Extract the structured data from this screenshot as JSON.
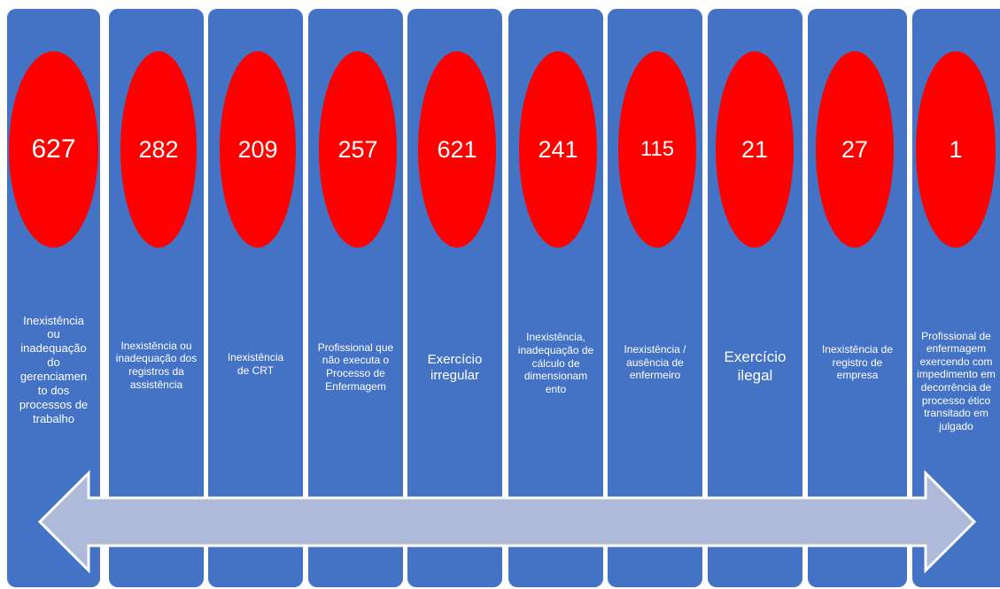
{
  "colors": {
    "column_fill": "#4472c4",
    "ellipse_fill": "#ff0000",
    "arrow_fill": "#afbadb",
    "arrow_stroke": "#ffffff",
    "text": "#ffffff"
  },
  "columns": [
    {
      "number": "627",
      "label": "Inexistência ou inadequação do gerenciamen to dos processos de trabalho"
    },
    {
      "number": "282",
      "label": "Inexistência ou inadequação dos registros da assistência"
    },
    {
      "number": "209",
      "label": "Inexistência de CRT"
    },
    {
      "number": "257",
      "label": "Profissional que não executa o Processo de Enfermagem"
    },
    {
      "number": "621",
      "label": "Exercício irregular"
    },
    {
      "number": "241",
      "label": "Inexistência, inadequação de cálculo de dimensionam ento"
    },
    {
      "number": "115",
      "label": "Inexistência / ausência de enfermeiro"
    },
    {
      "number": "21",
      "label": "Exercício ilegal"
    },
    {
      "number": "27",
      "label": "Inexistência de registro de empresa"
    },
    {
      "number": "1",
      "label": "Profissional de enfermagem exercendo com impedimento em decorrência de processo ético transitado em julgado"
    }
  ]
}
